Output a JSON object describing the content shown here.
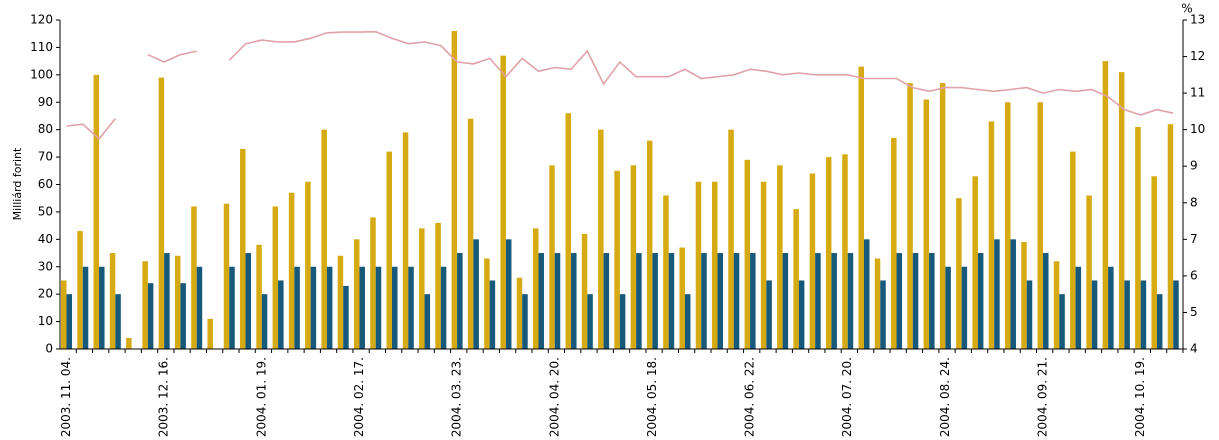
{
  "chart_data": {
    "type": "bar",
    "y_label": "Milliárd forint",
    "y2_label": "%",
    "categories": [
      "2003. 11. 04.",
      null,
      null,
      null,
      null,
      null,
      "2003. 12. 16.",
      null,
      null,
      null,
      null,
      null,
      "2004. 01. 19.",
      null,
      null,
      null,
      null,
      null,
      "2004. 02. 17.",
      null,
      null,
      null,
      null,
      null,
      "2004. 03. 23.",
      null,
      null,
      null,
      null,
      null,
      "2004. 04. 20.",
      null,
      null,
      null,
      null,
      null,
      "2004. 05. 18.",
      null,
      null,
      null,
      null,
      null,
      "2004. 06. 22.",
      null,
      null,
      null,
      null,
      null,
      "2004. 07. 20.",
      null,
      null,
      null,
      null,
      null,
      "2004. 08. 24.",
      null,
      null,
      null,
      null,
      null,
      "2004. 09. 21.",
      null,
      null,
      null,
      null,
      null,
      "2004. 10. 19.",
      null,
      null
    ],
    "series": [
      {
        "color": "#d6aa12",
        "values": [
          25,
          43,
          100,
          35,
          4,
          32,
          99,
          34,
          52,
          11,
          53,
          73,
          38,
          52,
          57,
          61,
          80,
          34,
          40,
          48,
          72,
          79,
          44,
          46,
          116,
          84,
          33,
          107,
          26,
          44,
          67,
          86,
          42,
          80,
          65,
          67,
          76,
          56,
          37,
          61,
          61,
          80,
          69,
          61,
          67,
          51,
          64,
          70,
          71,
          103,
          33,
          77,
          97,
          91,
          97,
          55,
          63,
          83,
          90,
          39,
          90,
          32,
          72,
          56,
          105,
          101,
          81,
          63,
          82
        ]
      },
      {
        "color": "#17597a",
        "values": [
          20,
          30,
          30,
          20,
          null,
          24,
          35,
          24,
          30,
          null,
          30,
          35,
          20,
          25,
          30,
          30,
          30,
          23,
          30,
          30,
          30,
          30,
          20,
          30,
          35,
          40,
          25,
          40,
          20,
          35,
          35,
          35,
          20,
          35,
          20,
          35,
          35,
          35,
          20,
          35,
          35,
          35,
          35,
          25,
          35,
          25,
          35,
          35,
          35,
          40,
          25,
          35,
          35,
          35,
          30,
          30,
          35,
          40,
          40,
          25,
          35,
          20,
          30,
          25,
          30,
          25,
          25,
          20,
          25
        ]
      },
      {
        "type": "line",
        "axis": "y2",
        "color": "#e0a2a8",
        "values": [
          10.1,
          10.15,
          9.75,
          10.3,
          null,
          12.05,
          11.85,
          12.05,
          12.15,
          null,
          11.9,
          12.35,
          12.45,
          12.4,
          12.4,
          12.5,
          12.65,
          12.67,
          12.67,
          12.68,
          12.5,
          12.35,
          12.4,
          12.3,
          11.85,
          11.8,
          11.95,
          11.45,
          11.95,
          11.6,
          11.7,
          11.65,
          12.15,
          11.25,
          11.85,
          11.45,
          11.45,
          11.45,
          11.65,
          11.4,
          11.45,
          11.5,
          11.65,
          11.6,
          11.5,
          11.55,
          11.5,
          11.5,
          11.5,
          11.4,
          11.4,
          11.4,
          11.15,
          11.05,
          11.15,
          11.15,
          11.1,
          11.05,
          11.1,
          11.15,
          11.0,
          11.1,
          11.05,
          11.1,
          10.9,
          10.55,
          10.4,
          10.55,
          10.45
        ]
      }
    ],
    "ylim": [
      0,
      120
    ],
    "yticks": [
      0,
      10,
      20,
      30,
      40,
      50,
      60,
      70,
      80,
      90,
      100,
      110,
      120
    ],
    "y2lim": [
      4,
      13
    ],
    "y2ticks": [
      4,
      5,
      6,
      7,
      8,
      9,
      10,
      11,
      12,
      13
    ]
  }
}
